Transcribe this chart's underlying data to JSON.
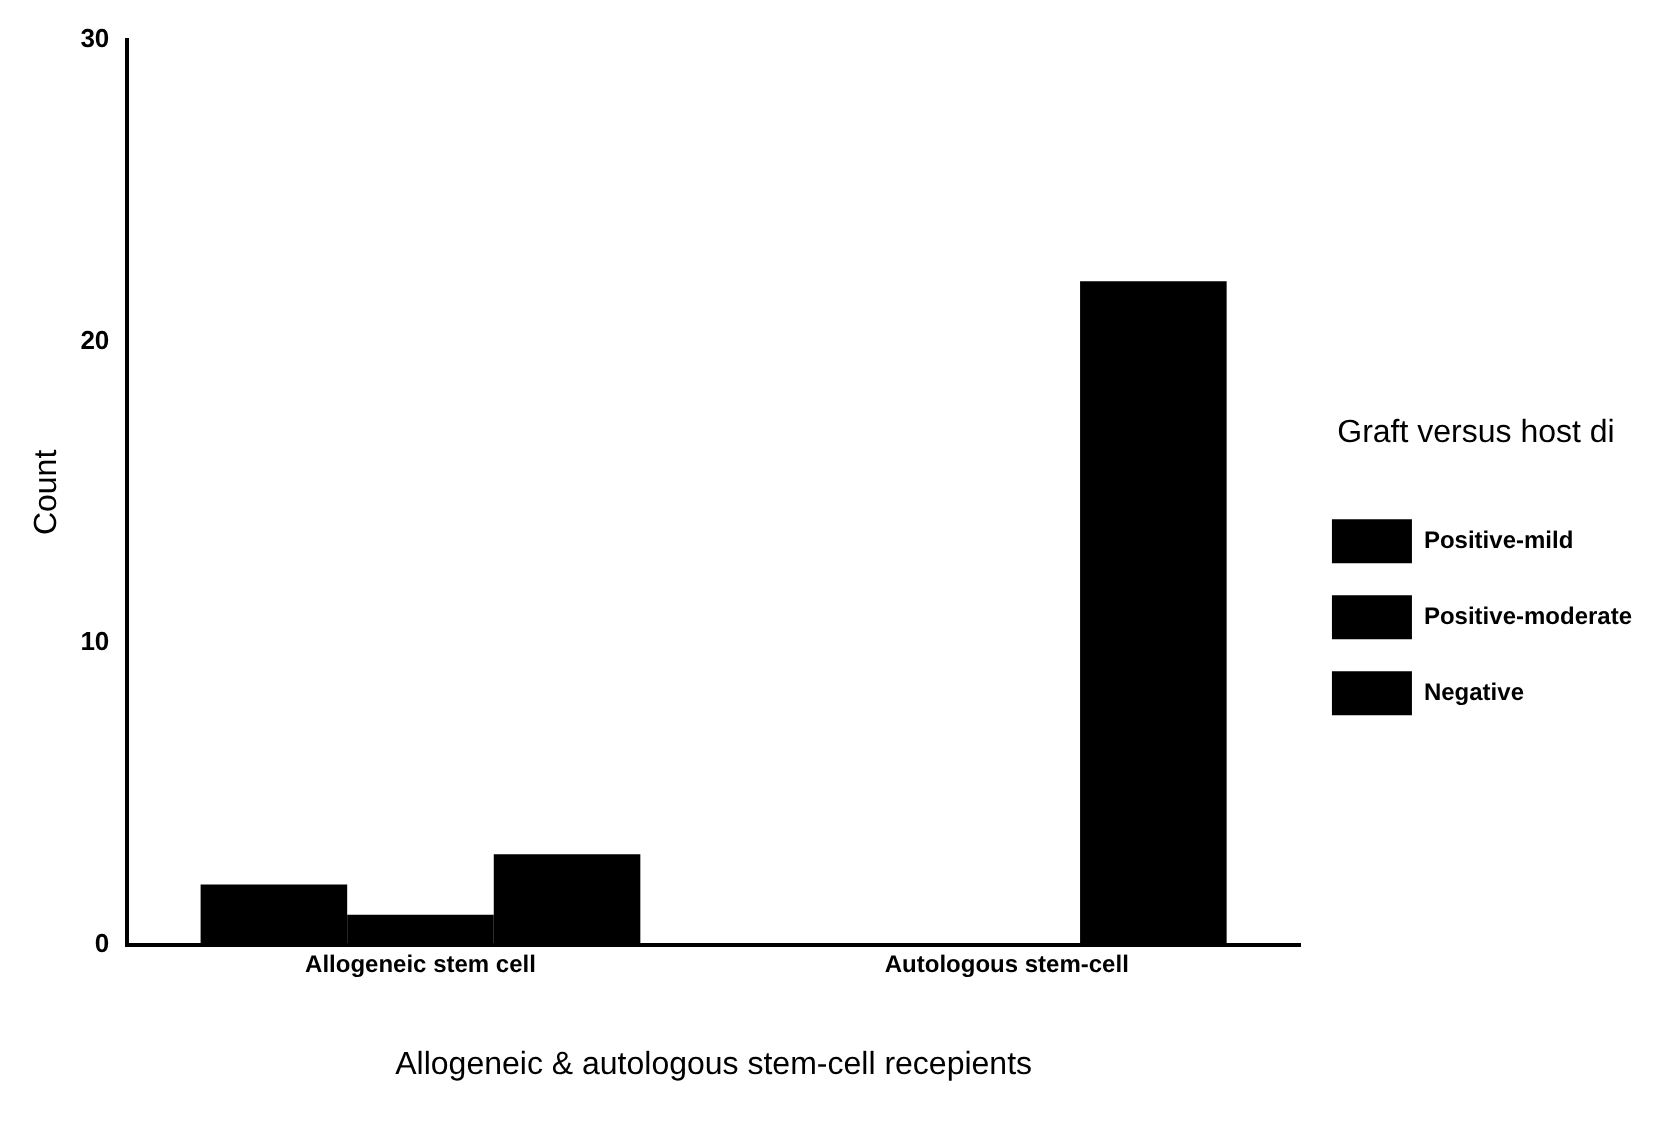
{
  "chart_data": {
    "type": "bar",
    "xlabel": "Allogeneic & autologous stem-cell recepients",
    "ylabel": "Count",
    "legend_title": "Graft versus host di",
    "categories": [
      "Allogeneic stem cell",
      "Autologous stem-cell"
    ],
    "series": [
      {
        "name": "Positive-mild",
        "color": "#000000",
        "values": [
          2,
          0
        ]
      },
      {
        "name": "Positive-moderate",
        "color": "#000000",
        "values": [
          1,
          0
        ]
      },
      {
        "name": "Negative",
        "color": "#000000",
        "values": [
          3,
          22
        ]
      }
    ],
    "ylim": [
      0,
      30
    ],
    "yticks": [
      0,
      10,
      20,
      30
    ],
    "grid": false,
    "legend": "right"
  }
}
